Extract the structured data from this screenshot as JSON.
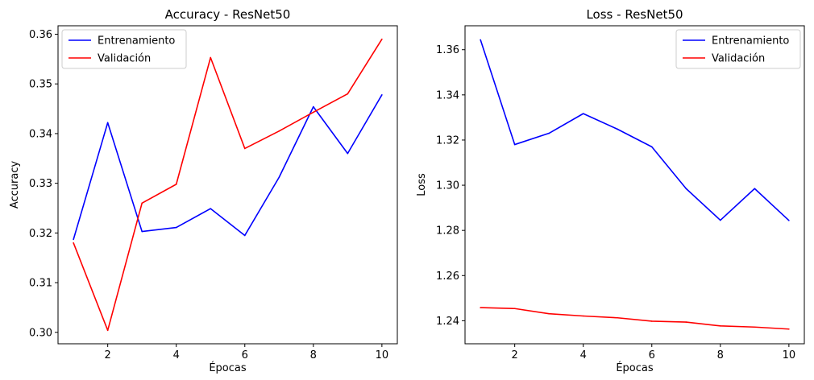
{
  "chart_data": [
    {
      "type": "line",
      "title": "Accuracy - ResNet50",
      "xlabel": "Épocas",
      "ylabel": "Accuracy",
      "xlim": [
        0.55,
        10.45
      ],
      "ylim": [
        0.2977,
        0.3617
      ],
      "xticks": [
        2,
        4,
        6,
        8,
        10
      ],
      "xtick_labels": [
        "2",
        "4",
        "6",
        "8",
        "10"
      ],
      "yticks": [
        0.3,
        0.31,
        0.32,
        0.33,
        0.34,
        0.35,
        0.36
      ],
      "ytick_labels": [
        "0.30",
        "0.31",
        "0.32",
        "0.33",
        "0.34",
        "0.35",
        "0.36"
      ],
      "legend_position": "upper-left",
      "grid": false,
      "x": [
        1,
        2,
        3,
        4,
        5,
        6,
        7,
        8,
        9,
        10
      ],
      "series": [
        {
          "name": "Entrenamiento",
          "color": "#0000ff",
          "values": [
            0.3187,
            0.3422,
            0.3203,
            0.3211,
            0.3249,
            0.3195,
            0.3312,
            0.3454,
            0.336,
            0.3478
          ]
        },
        {
          "name": "Validación",
          "color": "#ff0000",
          "values": [
            0.318,
            0.3004,
            0.326,
            0.3298,
            0.3553,
            0.337,
            0.3405,
            0.3443,
            0.348,
            0.359
          ]
        }
      ]
    },
    {
      "type": "line",
      "title": "Loss - ResNet50",
      "xlabel": "Épocas",
      "ylabel": "Loss",
      "xlim": [
        0.55,
        10.45
      ],
      "ylim": [
        1.2298,
        1.3706
      ],
      "xticks": [
        2,
        4,
        6,
        8,
        10
      ],
      "xtick_labels": [
        "2",
        "4",
        "6",
        "8",
        "10"
      ],
      "yticks": [
        1.24,
        1.26,
        1.28,
        1.3,
        1.32,
        1.34,
        1.36
      ],
      "ytick_labels": [
        "1.24",
        "1.26",
        "1.28",
        "1.30",
        "1.32",
        "1.34",
        "1.36"
      ],
      "legend_position": "upper-right",
      "grid": false,
      "x": [
        1,
        2,
        3,
        4,
        5,
        6,
        7,
        8,
        9,
        10
      ],
      "series": [
        {
          "name": "Entrenamiento",
          "color": "#0000ff",
          "values": [
            1.3644,
            1.318,
            1.323,
            1.3317,
            1.3248,
            1.317,
            1.2985,
            1.2845,
            1.2985,
            1.2844
          ]
        },
        {
          "name": "Validación",
          "color": "#ff0000",
          "values": [
            1.2458,
            1.2454,
            1.2431,
            1.2421,
            1.2413,
            1.2398,
            1.2394,
            1.2377,
            1.2372,
            1.2363
          ]
        }
      ]
    }
  ]
}
